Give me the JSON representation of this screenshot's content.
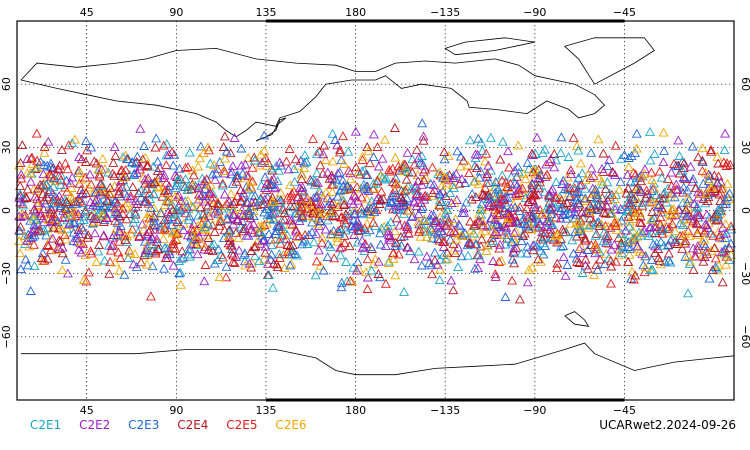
{
  "map": {
    "top_lon_labels": [
      "45",
      "90",
      "135",
      "180",
      "−135",
      "−90",
      "−45"
    ],
    "bottom_lon_labels": [
      "45",
      "90",
      "135",
      "180",
      "−135",
      "−90",
      "−45"
    ],
    "lat_labels": [
      "60",
      "30",
      "0",
      "−30",
      "−60"
    ],
    "gridlines": "dotted",
    "marker_shape": "triangle",
    "marker_lat_range": [
      -45,
      45
    ],
    "land_outline_color": "#000000"
  },
  "legend": {
    "items": [
      {
        "label": "C2E1",
        "color": "#1aa6c8"
      },
      {
        "label": "C2E2",
        "color": "#9b1fc9"
      },
      {
        "label": "C2E3",
        "color": "#1e66d8"
      },
      {
        "label": "C2E4",
        "color": "#b5161f"
      },
      {
        "label": "C2E5",
        "color": "#e21b1b"
      },
      {
        "label": "C2E6",
        "color": "#f0a800"
      }
    ]
  },
  "caption": "UCARwet2.2024-09-26"
}
